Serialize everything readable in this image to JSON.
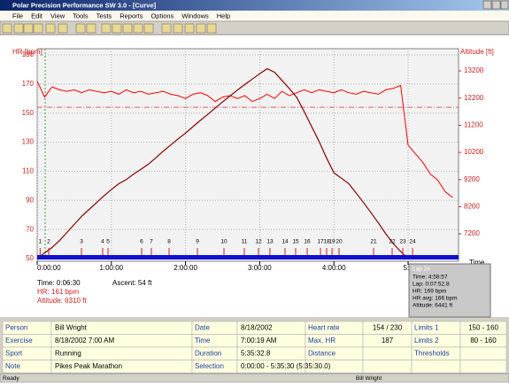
{
  "window": {
    "title": "Polar Precision Performance SW 3.0 - [Curve]",
    "menu": [
      "File",
      "Edit",
      "View",
      "Tools",
      "Tests",
      "Reports",
      "Options",
      "Windows",
      "Help"
    ]
  },
  "chart_data": {
    "type": "line",
    "y_label": "HR [bpm]",
    "y2_label": "Altitude [ft]",
    "x_label": "Time",
    "x": [
      0,
      0.1,
      0.2,
      0.3,
      0.4,
      0.5,
      0.6,
      0.7,
      0.8,
      0.9,
      1.0,
      1.1,
      1.2,
      1.3,
      1.4,
      1.5,
      1.6,
      1.7,
      1.8,
      1.9,
      2.0,
      2.1,
      2.2,
      2.3,
      2.4,
      2.5,
      2.6,
      2.7,
      2.8,
      2.9,
      3.0,
      3.1,
      3.2,
      3.3,
      3.4,
      3.5,
      3.6,
      3.7,
      3.8,
      3.9,
      4.0,
      4.1,
      4.2,
      4.3,
      4.4,
      4.5,
      4.6,
      4.7,
      4.8,
      4.9,
      5.0,
      5.1,
      5.2,
      5.3,
      5.4,
      5.5,
      5.6
    ],
    "series": [
      {
        "name": "HR",
        "color": "#ff0000",
        "values": [
          172,
          161,
          168,
          166,
          165,
          166,
          164,
          166,
          165,
          164,
          165,
          163,
          166,
          164,
          165,
          163,
          164,
          165,
          163,
          162,
          160,
          163,
          164,
          162,
          158,
          161,
          162,
          160,
          162,
          158,
          160,
          163,
          160,
          165,
          162,
          164,
          166,
          164,
          166,
          165,
          164,
          166,
          164,
          163,
          165,
          164,
          163,
          166,
          167,
          169,
          128,
          122,
          116,
          108,
          104,
          96,
          92
        ]
      },
      {
        "name": "Altitude",
        "color": "#8b0000",
        "axis": "y2",
        "values": [
          6300,
          6500,
          6700,
          6950,
          7250,
          7550,
          7850,
          8100,
          8350,
          8600,
          8830,
          9050,
          9200,
          9400,
          9580,
          9770,
          10000,
          10250,
          10470,
          10700,
          10910,
          11150,
          11380,
          11600,
          11830,
          12060,
          12280,
          12500,
          12700,
          12900,
          13100,
          13280,
          13150,
          12850,
          12550,
          12220,
          11700,
          11150,
          10600,
          10000,
          9450,
          9250,
          9050,
          8700,
          8350,
          7980,
          7600,
          7200,
          6840,
          6550,
          6290,
          null,
          null,
          null,
          null,
          null,
          null
        ]
      }
    ],
    "xlim": [
      0,
      5.68
    ],
    "xticks": [
      {
        "value": 0,
        "label": "0:00:00"
      },
      {
        "value": 1,
        "label": "1:00:00"
      },
      {
        "value": 2,
        "label": "2:00:00"
      },
      {
        "value": 3,
        "label": "3:00:00"
      },
      {
        "value": 4,
        "label": "4:00:00"
      },
      {
        "value": 5,
        "label": "5:0"
      }
    ],
    "ylim": [
      50,
      190
    ],
    "yticks": [
      50,
      70,
      90,
      110,
      130,
      150,
      170,
      190
    ],
    "y2lim": [
      6290,
      13790
    ],
    "y2ticks": [
      7200,
      8200,
      9200,
      10200,
      11200,
      12200,
      13200
    ],
    "grid": true,
    "limit_line": 154,
    "cursor": 0.108,
    "laps": {
      "labels": [
        "1",
        "2",
        "3",
        "4",
        "5",
        "6",
        "7",
        "8",
        "9",
        "10",
        "11",
        "12",
        "13",
        "14",
        "15",
        "16",
        "17",
        "18",
        "19",
        "20",
        "21",
        "22",
        "23",
        "24"
      ],
      "x": [
        0.04,
        0.155,
        0.597,
        0.883,
        0.955,
        1.408,
        1.539,
        1.778,
        2.16,
        2.518,
        2.792,
        2.983,
        3.138,
        3.341,
        3.484,
        3.64,
        3.819,
        3.902,
        3.974,
        4.069,
        4.535,
        4.785,
        4.928,
        5.06
      ]
    }
  },
  "info": {
    "time": "Time: 0:06:30",
    "hr": "HR: 161 bpm",
    "altitude": "Altitude: 6310 ft",
    "ascent": "Ascent: 54 ft"
  },
  "tooltip": {
    "title": "Lap 24",
    "lines": [
      "Time: 4:58:57",
      "Lap: 0:07:52.8",
      "HR: 169 bpm",
      "HR avg: 166 bpm",
      "Altitude: 6441 ft"
    ]
  },
  "table": {
    "rows": [
      [
        {
          "label": "Person",
          "value": "Bill Wright"
        },
        {
          "label": "Date",
          "value": "8/18/2002"
        },
        {
          "label": "Heart rate",
          "value": "154 / 230"
        },
        {
          "label": "Limits 1",
          "value": "150 - 160"
        }
      ],
      [
        {
          "label": "Exercise",
          "value": "8/18/2002 7:00 AM"
        },
        {
          "label": "Time",
          "value": "7:00:19 AM"
        },
        {
          "label": "Max. HR",
          "value": "187"
        },
        {
          "label": "Limits 2",
          "value": "80 - 160"
        }
      ],
      [
        {
          "label": "Sport",
          "value": "Running"
        },
        {
          "label": "Duration",
          "value": "5:35:32.8"
        },
        {
          "label": "Distance"
        },
        {
          "label": "Thresholds"
        }
      ],
      [
        {
          "label": "Note",
          "value": "Pikes Peak Marathon"
        },
        {
          "label": "Selection",
          "value": "0:00:00 - 5:35:30 (5:35:30.0)"
        }
      ]
    ]
  },
  "status": {
    "left": "Ready",
    "user": "Bill Wright"
  }
}
